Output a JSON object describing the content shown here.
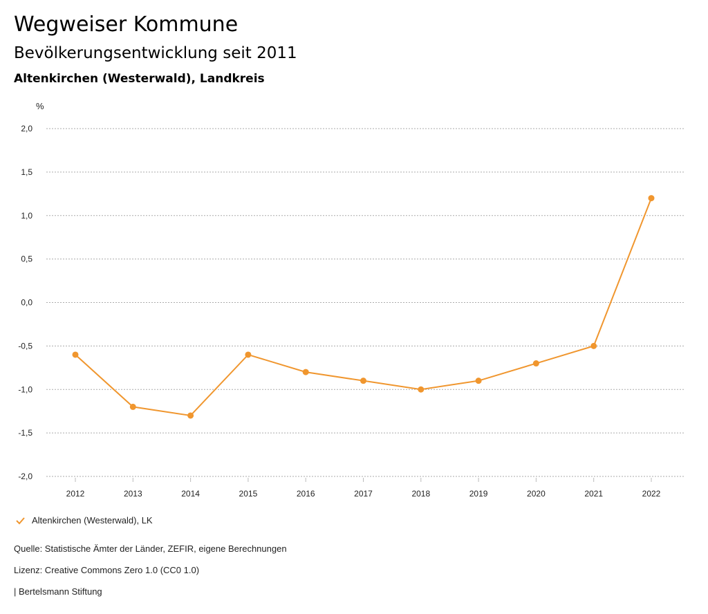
{
  "header": {
    "title": "Wegweiser Kommune",
    "subtitle": "Bevölkerungsentwicklung seit 2011",
    "region": "Altenkirchen (Westerwald), Landkreis"
  },
  "footer": {
    "source": "Quelle: Statistische Ämter der Länder, ZEFIR, eigene Berechnungen",
    "license": "Lizenz: Creative Commons Zero 1.0 (CC0 1.0)",
    "organization": "| Bertelsmann Stiftung"
  },
  "colors": {
    "series": "#f0962e",
    "grid": "#aaaaaa"
  },
  "chart_data": {
    "type": "line",
    "ylabel": "%",
    "ylim": [
      -2.0,
      2.0
    ],
    "yticks": [
      "2,0",
      "1,5",
      "1,0",
      "0,5",
      "0,0",
      "-0,5",
      "-1,0",
      "-1,5",
      "-2,0"
    ],
    "ytick_values": [
      2.0,
      1.5,
      1.0,
      0.5,
      0.0,
      -0.5,
      -1.0,
      -1.5,
      -2.0
    ],
    "categories": [
      "2012",
      "2013",
      "2014",
      "2015",
      "2016",
      "2017",
      "2018",
      "2019",
      "2020",
      "2021",
      "2022"
    ],
    "series": [
      {
        "name": "Altenkirchen (Westerwald), LK",
        "values": [
          -0.6,
          -1.2,
          -1.3,
          -0.6,
          -0.8,
          -0.9,
          -1.0,
          -0.9,
          -0.7,
          -0.5,
          1.2
        ]
      }
    ],
    "grid": true,
    "legend": "bottom-left"
  }
}
